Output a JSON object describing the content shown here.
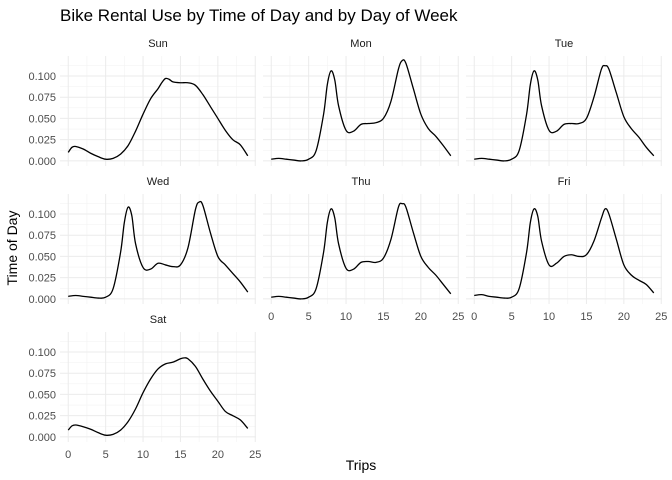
{
  "chart_data": {
    "type": "line",
    "title": "Bike Rental Use by Time of Day and by Day of Week",
    "xlabel": "Trips",
    "ylabel": "Time of Day",
    "xlim": [
      0,
      24
    ],
    "ylim": [
      0,
      0.12
    ],
    "x_ticks": [
      0,
      5,
      10,
      15,
      20,
      25
    ],
    "y_ticks": [
      "0.000",
      "0.025",
      "0.050",
      "0.075",
      "0.100"
    ],
    "grid": true,
    "facets": [
      {
        "name": "Sun",
        "points": [
          [
            0,
            0.01
          ],
          [
            0.5,
            0.016
          ],
          [
            1,
            0.017
          ],
          [
            2,
            0.014
          ],
          [
            3,
            0.009
          ],
          [
            4,
            0.005
          ],
          [
            5,
            0.002
          ],
          [
            6,
            0.003
          ],
          [
            7,
            0.008
          ],
          [
            8,
            0.018
          ],
          [
            9,
            0.035
          ],
          [
            10,
            0.055
          ],
          [
            11,
            0.073
          ],
          [
            12,
            0.085
          ],
          [
            12.5,
            0.092
          ],
          [
            13,
            0.097
          ],
          [
            13.5,
            0.096
          ],
          [
            14,
            0.093
          ],
          [
            15,
            0.092
          ],
          [
            16,
            0.092
          ],
          [
            17,
            0.089
          ],
          [
            18,
            0.078
          ],
          [
            19,
            0.064
          ],
          [
            20,
            0.05
          ],
          [
            21,
            0.036
          ],
          [
            22,
            0.025
          ],
          [
            23,
            0.019
          ],
          [
            24,
            0.006
          ]
        ]
      },
      {
        "name": "Mon",
        "points": [
          [
            0,
            0.002
          ],
          [
            1,
            0.003
          ],
          [
            2,
            0.002
          ],
          [
            3,
            0.001
          ],
          [
            4,
            0.0
          ],
          [
            5,
            0.002
          ],
          [
            6,
            0.012
          ],
          [
            7,
            0.055
          ],
          [
            7.5,
            0.09
          ],
          [
            8,
            0.106
          ],
          [
            8.5,
            0.095
          ],
          [
            9,
            0.065
          ],
          [
            10,
            0.036
          ],
          [
            11,
            0.035
          ],
          [
            12,
            0.043
          ],
          [
            13,
            0.044
          ],
          [
            14,
            0.045
          ],
          [
            15,
            0.05
          ],
          [
            16,
            0.07
          ],
          [
            17,
            0.108
          ],
          [
            17.5,
            0.118
          ],
          [
            18,
            0.115
          ],
          [
            19,
            0.085
          ],
          [
            20,
            0.055
          ],
          [
            21,
            0.038
          ],
          [
            22,
            0.029
          ],
          [
            23,
            0.018
          ],
          [
            24,
            0.006
          ]
        ]
      },
      {
        "name": "Tue",
        "points": [
          [
            0,
            0.002
          ],
          [
            1,
            0.003
          ],
          [
            2,
            0.002
          ],
          [
            3,
            0.001
          ],
          [
            4,
            0.0
          ],
          [
            5,
            0.002
          ],
          [
            6,
            0.012
          ],
          [
            7,
            0.055
          ],
          [
            7.5,
            0.09
          ],
          [
            8,
            0.106
          ],
          [
            8.5,
            0.095
          ],
          [
            9,
            0.065
          ],
          [
            10,
            0.036
          ],
          [
            11,
            0.035
          ],
          [
            12,
            0.043
          ],
          [
            13,
            0.044
          ],
          [
            14,
            0.044
          ],
          [
            15,
            0.05
          ],
          [
            16,
            0.075
          ],
          [
            17,
            0.108
          ],
          [
            17.5,
            0.112
          ],
          [
            18,
            0.108
          ],
          [
            19,
            0.08
          ],
          [
            20,
            0.052
          ],
          [
            21,
            0.038
          ],
          [
            22,
            0.028
          ],
          [
            23,
            0.016
          ],
          [
            24,
            0.006
          ]
        ]
      },
      {
        "name": "Wed",
        "points": [
          [
            0,
            0.003
          ],
          [
            1,
            0.004
          ],
          [
            2,
            0.003
          ],
          [
            3,
            0.002
          ],
          [
            4,
            0.001
          ],
          [
            5,
            0.002
          ],
          [
            6,
            0.012
          ],
          [
            7,
            0.055
          ],
          [
            7.5,
            0.09
          ],
          [
            8,
            0.108
          ],
          [
            8.5,
            0.098
          ],
          [
            9,
            0.065
          ],
          [
            10,
            0.037
          ],
          [
            11,
            0.035
          ],
          [
            12,
            0.042
          ],
          [
            13,
            0.04
          ],
          [
            14,
            0.038
          ],
          [
            15,
            0.04
          ],
          [
            16,
            0.06
          ],
          [
            17,
            0.105
          ],
          [
            17.5,
            0.114
          ],
          [
            18,
            0.11
          ],
          [
            19,
            0.078
          ],
          [
            20,
            0.05
          ],
          [
            21,
            0.04
          ],
          [
            22,
            0.03
          ],
          [
            23,
            0.02
          ],
          [
            24,
            0.008
          ]
        ]
      },
      {
        "name": "Thu",
        "points": [
          [
            0,
            0.002
          ],
          [
            1,
            0.003
          ],
          [
            2,
            0.002
          ],
          [
            3,
            0.001
          ],
          [
            4,
            0.0
          ],
          [
            5,
            0.002
          ],
          [
            6,
            0.012
          ],
          [
            7,
            0.055
          ],
          [
            7.5,
            0.09
          ],
          [
            8,
            0.106
          ],
          [
            8.5,
            0.095
          ],
          [
            9,
            0.065
          ],
          [
            10,
            0.036
          ],
          [
            11,
            0.035
          ],
          [
            12,
            0.043
          ],
          [
            13,
            0.044
          ],
          [
            14,
            0.043
          ],
          [
            15,
            0.048
          ],
          [
            16,
            0.07
          ],
          [
            17,
            0.108
          ],
          [
            17.5,
            0.112
          ],
          [
            18,
            0.108
          ],
          [
            19,
            0.078
          ],
          [
            20,
            0.05
          ],
          [
            21,
            0.037
          ],
          [
            22,
            0.028
          ],
          [
            23,
            0.017
          ],
          [
            24,
            0.006
          ]
        ]
      },
      {
        "name": "Fri",
        "points": [
          [
            0,
            0.004
          ],
          [
            1,
            0.005
          ],
          [
            2,
            0.003
          ],
          [
            3,
            0.002
          ],
          [
            4,
            0.001
          ],
          [
            5,
            0.002
          ],
          [
            6,
            0.012
          ],
          [
            7,
            0.055
          ],
          [
            7.5,
            0.09
          ],
          [
            8,
            0.106
          ],
          [
            8.5,
            0.097
          ],
          [
            9,
            0.068
          ],
          [
            10,
            0.04
          ],
          [
            11,
            0.042
          ],
          [
            12,
            0.05
          ],
          [
            13,
            0.052
          ],
          [
            14,
            0.05
          ],
          [
            15,
            0.052
          ],
          [
            16,
            0.068
          ],
          [
            17,
            0.095
          ],
          [
            17.5,
            0.106
          ],
          [
            18,
            0.1
          ],
          [
            19,
            0.07
          ],
          [
            20,
            0.04
          ],
          [
            21,
            0.028
          ],
          [
            22,
            0.022
          ],
          [
            23,
            0.017
          ],
          [
            24,
            0.007
          ]
        ]
      },
      {
        "name": "Sat",
        "points": [
          [
            0,
            0.008
          ],
          [
            0.5,
            0.013
          ],
          [
            1,
            0.014
          ],
          [
            2,
            0.012
          ],
          [
            3,
            0.009
          ],
          [
            4,
            0.005
          ],
          [
            5,
            0.002
          ],
          [
            6,
            0.003
          ],
          [
            7,
            0.008
          ],
          [
            8,
            0.018
          ],
          [
            9,
            0.033
          ],
          [
            10,
            0.052
          ],
          [
            11,
            0.068
          ],
          [
            12,
            0.08
          ],
          [
            13,
            0.086
          ],
          [
            14,
            0.088
          ],
          [
            15,
            0.092
          ],
          [
            15.5,
            0.093
          ],
          [
            16,
            0.092
          ],
          [
            17,
            0.083
          ],
          [
            18,
            0.068
          ],
          [
            19,
            0.054
          ],
          [
            20,
            0.042
          ],
          [
            21,
            0.03
          ],
          [
            22,
            0.025
          ],
          [
            23,
            0.02
          ],
          [
            24,
            0.01
          ]
        ]
      }
    ]
  }
}
